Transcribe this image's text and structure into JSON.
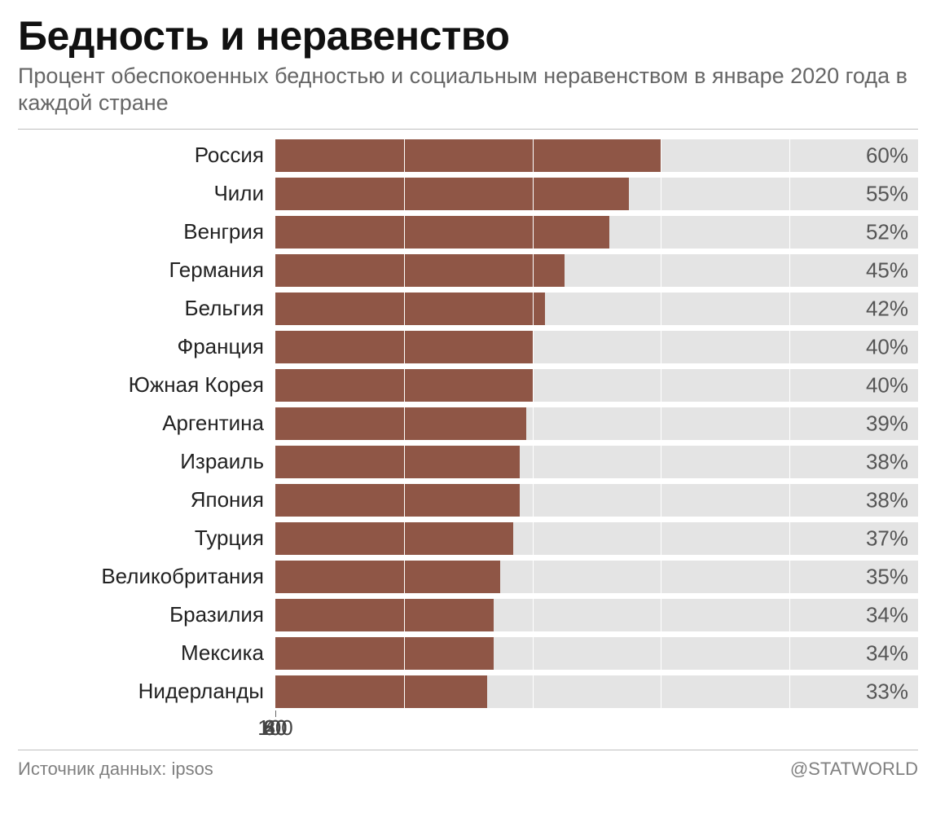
{
  "title": "Бедность и неравенство",
  "subtitle": "Процент обеспокоенных бедностью и социальным неравенством в январе 2020 года в каждой стране",
  "chart": {
    "type": "bar",
    "orientation": "horizontal",
    "xlim": [
      0,
      100
    ],
    "ticks": [
      0,
      20,
      40,
      60,
      80,
      100
    ],
    "bar_color": "#8f5646",
    "track_color": "#e4e4e4",
    "grid_color": "#ffffff",
    "background_color": "#ffffff",
    "border_color": "#bfbfbf",
    "label_fontsize": 26,
    "value_fontsize": 26,
    "tick_fontsize": 26,
    "value_suffix": "%",
    "rows": [
      {
        "label": "Россия",
        "value": 60
      },
      {
        "label": "Чили",
        "value": 55
      },
      {
        "label": "Венгрия",
        "value": 52
      },
      {
        "label": "Германия",
        "value": 45
      },
      {
        "label": "Бельгия",
        "value": 42
      },
      {
        "label": "Франция",
        "value": 40
      },
      {
        "label": "Южная Корея",
        "value": 40
      },
      {
        "label": "Аргентина",
        "value": 39
      },
      {
        "label": "Израиль",
        "value": 38
      },
      {
        "label": "Япония",
        "value": 38
      },
      {
        "label": "Турция",
        "value": 37
      },
      {
        "label": "Великобритания",
        "value": 35
      },
      {
        "label": "Бразилия",
        "value": 34
      },
      {
        "label": "Мексика",
        "value": 34
      },
      {
        "label": "Нидерланды",
        "value": 33
      }
    ]
  },
  "footer": {
    "source": "Источник данных: ipsos",
    "credit": "@STATWORLD"
  }
}
